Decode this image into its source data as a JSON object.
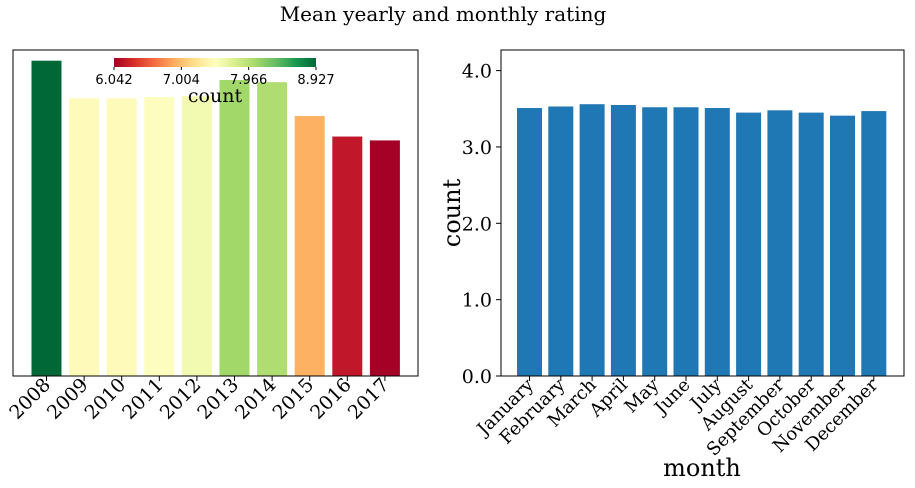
{
  "figure_title": "Mean yearly and monthly rating",
  "chart_data": [
    {
      "type": "bar",
      "categories": [
        "2008",
        "2009",
        "2010",
        "2011",
        "2012",
        "2013",
        "2014",
        "2015",
        "2016",
        "2017"
      ],
      "values": [
        8.927,
        7.86,
        7.86,
        7.9,
        7.92,
        8.38,
        8.32,
        7.36,
        6.78,
        6.67
      ],
      "ylim": [
        0,
        9.23
      ],
      "y_axis_visible": false,
      "colors": [
        "#006837",
        "#fefbba",
        "#fefbba",
        "#fdfdc0",
        "#f2f9b0",
        "#a2d76a",
        "#b0dd71",
        "#fdb163",
        "#c0182a",
        "#a50026"
      ],
      "colorbar": {
        "label": "count",
        "ticks": [
          "6.042",
          "7.004",
          "7.966",
          "8.927"
        ],
        "colormap": "RdYlGn",
        "placement": "top-center"
      },
      "grid": false
    },
    {
      "type": "bar",
      "categories": [
        "January",
        "February",
        "March",
        "April",
        "May",
        "June",
        "July",
        "August",
        "September",
        "October",
        "November",
        "December"
      ],
      "values": [
        3.51,
        3.53,
        3.56,
        3.55,
        3.52,
        3.52,
        3.51,
        3.45,
        3.48,
        3.45,
        3.41,
        3.47
      ],
      "xlabel": "month",
      "ylabel": "count",
      "ylim": [
        0,
        4.27
      ],
      "yticks": [
        "0.0",
        "1.0",
        "2.0",
        "3.0",
        "4.0"
      ],
      "color": "#1f77b4",
      "grid": false
    }
  ]
}
